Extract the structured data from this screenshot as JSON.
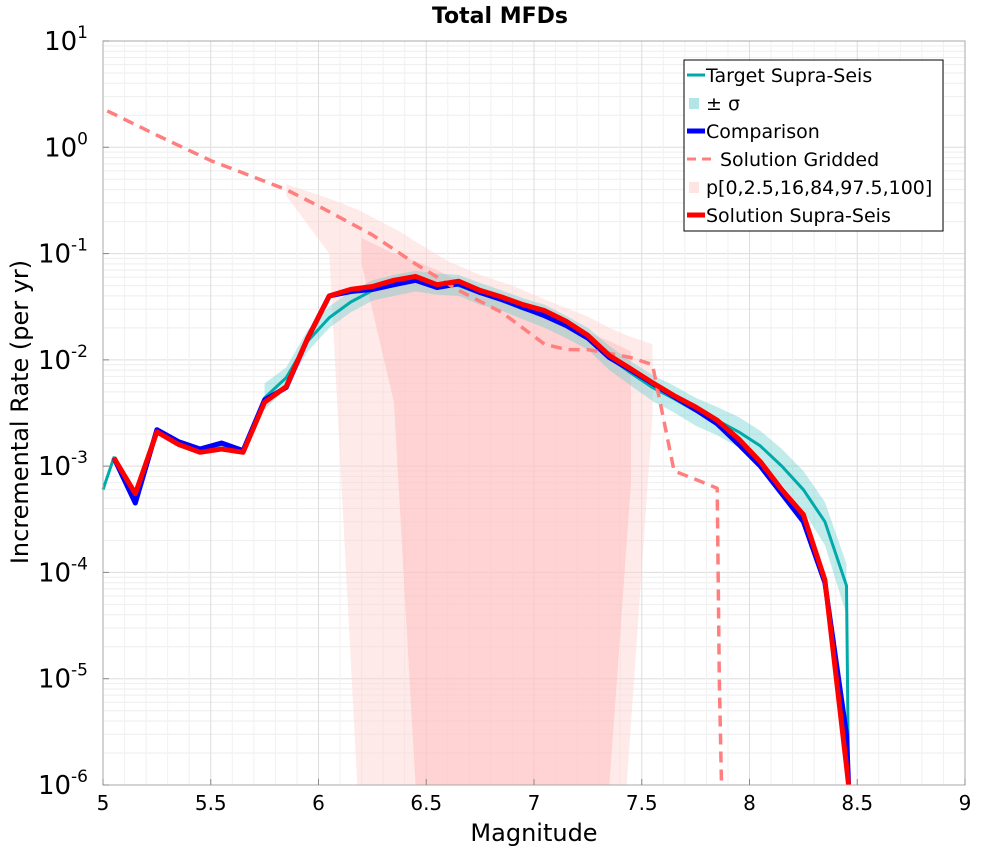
{
  "chart_data": {
    "type": "line",
    "title": "Total MFDs",
    "xlabel": "Magnitude",
    "ylabel": "Incremental Rate (per yr)",
    "xlim": [
      5,
      9
    ],
    "ylim": [
      1e-06,
      10
    ],
    "yscale": "log",
    "grid": true,
    "legend_position": "top-right",
    "x_ticks": [
      "5",
      "5.5",
      "6",
      "6.5",
      "7",
      "7.5",
      "8",
      "8.5",
      "9"
    ],
    "y_ticks": [
      {
        "base": "10",
        "exp": "-6"
      },
      {
        "base": "10",
        "exp": "-5"
      },
      {
        "base": "10",
        "exp": "-4"
      },
      {
        "base": "10",
        "exp": "-3"
      },
      {
        "base": "10",
        "exp": "-2"
      },
      {
        "base": "10",
        "exp": "-1"
      },
      {
        "base": "10",
        "exp": "0"
      },
      {
        "base": "10",
        "exp": "1"
      }
    ],
    "legend": [
      {
        "label": "Target Supra-Seis",
        "color": "#00aaaa",
        "style": "line"
      },
      {
        "label": "± σ",
        "color": "#b2e6e6",
        "style": "patch"
      },
      {
        "label": "Comparison",
        "color": "#0000ff",
        "style": "thick-line"
      },
      {
        "label": "Solution Gridded",
        "color": "#ff7f7f",
        "style": "dashed"
      },
      {
        "label": "p[0,2.5,16,84,97.5,100]",
        "color": "#ffe4e4",
        "style": "patch"
      },
      {
        "label": "Solution Supra-Seis",
        "color": "#ff0000",
        "style": "thick-line"
      }
    ],
    "series": {
      "target_supra_seis": {
        "color": "#00aaaa",
        "x": [
          5.0,
          5.05,
          5.15,
          5.25,
          5.35,
          5.45,
          5.55,
          5.65,
          5.75,
          5.85,
          5.95,
          6.05,
          6.15,
          6.25,
          6.35,
          6.45,
          6.55,
          6.65,
          6.75,
          6.85,
          6.95,
          7.05,
          7.15,
          7.25,
          7.35,
          7.45,
          7.55,
          7.65,
          7.75,
          7.85,
          7.95,
          8.05,
          8.15,
          8.25,
          8.35,
          8.45,
          8.46
        ],
        "y": [
          0.0006,
          0.0012,
          0.0005,
          0.0022,
          0.0017,
          0.0014,
          0.0016,
          0.0014,
          0.0044,
          0.0068,
          0.015,
          0.025,
          0.035,
          0.045,
          0.05,
          0.055,
          0.052,
          0.05,
          0.042,
          0.036,
          0.03,
          0.026,
          0.021,
          0.016,
          0.0105,
          0.0075,
          0.0055,
          0.0043,
          0.0033,
          0.0027,
          0.0021,
          0.00155,
          0.001,
          0.0006,
          0.0003,
          7.5e-05,
          1e-06
        ]
      },
      "target_sigma": {
        "color": "#b2e6e6",
        "x": [
          5.75,
          5.85,
          5.95,
          6.05,
          6.15,
          6.25,
          6.35,
          6.45,
          6.55,
          6.65,
          6.75,
          6.85,
          6.95,
          7.05,
          7.15,
          7.25,
          7.35,
          7.45,
          7.55,
          7.65,
          7.75,
          7.85,
          7.95,
          8.05,
          8.15,
          8.25,
          8.35,
          8.45
        ],
        "upper": [
          0.006,
          0.0085,
          0.019,
          0.032,
          0.044,
          0.056,
          0.063,
          0.069,
          0.065,
          0.063,
          0.053,
          0.045,
          0.038,
          0.033,
          0.026,
          0.02,
          0.0135,
          0.0097,
          0.0072,
          0.0057,
          0.0044,
          0.0036,
          0.0029,
          0.00215,
          0.00145,
          0.0009,
          0.00046,
          0.00012
        ],
        "lower": [
          0.0034,
          0.0054,
          0.012,
          0.02,
          0.028,
          0.036,
          0.04,
          0.044,
          0.041,
          0.04,
          0.033,
          0.029,
          0.024,
          0.02,
          0.016,
          0.0125,
          0.008,
          0.0057,
          0.0041,
          0.0032,
          0.0024,
          0.00195,
          0.0015,
          0.0011,
          0.00067,
          0.00038,
          0.00018,
          4e-05
        ]
      },
      "comparison": {
        "color": "#0000ff",
        "x": [
          5.05,
          5.15,
          5.25,
          5.35,
          5.45,
          5.55,
          5.65,
          5.75,
          5.85,
          5.95,
          6.05,
          6.15,
          6.25,
          6.35,
          6.45,
          6.55,
          6.65,
          6.75,
          6.85,
          6.95,
          7.05,
          7.15,
          7.25,
          7.35,
          7.45,
          7.55,
          7.65,
          7.75,
          7.85,
          7.95,
          8.05,
          8.15,
          8.25,
          8.35,
          8.45,
          8.46
        ],
        "y": [
          0.0012,
          0.00045,
          0.0022,
          0.0017,
          0.00145,
          0.00165,
          0.0014,
          0.0042,
          0.0055,
          0.016,
          0.04,
          0.044,
          0.046,
          0.051,
          0.056,
          0.048,
          0.052,
          0.043,
          0.037,
          0.031,
          0.026,
          0.021,
          0.016,
          0.0105,
          0.008,
          0.006,
          0.0045,
          0.0034,
          0.0025,
          0.0016,
          0.001,
          0.00055,
          0.0003,
          8e-05,
          3e-06,
          1e-06
        ]
      },
      "solution_gridded": {
        "color": "#ff7f7f",
        "x": [
          5.02,
          5.25,
          5.5,
          5.75,
          5.85,
          6.0,
          6.25,
          6.45,
          6.65,
          6.85,
          7.05,
          7.15,
          7.25,
          7.35,
          7.45,
          7.55,
          7.65,
          7.75,
          7.85,
          7.86,
          7.87
        ],
        "y": [
          2.2,
          1.3,
          0.75,
          0.48,
          0.4,
          0.28,
          0.15,
          0.08,
          0.045,
          0.028,
          0.014,
          0.0125,
          0.0125,
          0.0115,
          0.0105,
          0.009,
          0.0009,
          0.00075,
          0.00062,
          1e-05,
          1e-06
        ]
      },
      "solution_percentiles": {
        "color": "#ffe4e4",
        "x": [
          5.85,
          6.05,
          6.18,
          6.25,
          6.38,
          6.45,
          6.6,
          6.75,
          6.9,
          7.05,
          7.2,
          7.26,
          7.35,
          7.43,
          7.55
        ],
        "outer_upper": [
          0.45,
          0.33,
          0.26,
          0.22,
          0.16,
          0.13,
          0.085,
          0.063,
          0.05,
          0.037,
          0.028,
          0.025,
          0.02,
          0.017,
          0.014
        ],
        "outer_lower": [
          0.35,
          0.1,
          1e-06,
          1e-06,
          1e-06,
          1e-06,
          1e-06,
          1e-06,
          1e-06,
          1e-06,
          1e-06,
          1e-06,
          1e-06,
          1e-06,
          0.003
        ],
        "inner_x": [
          6.2,
          6.35,
          6.45,
          6.55,
          6.65,
          6.75,
          6.85,
          6.95,
          7.05,
          7.15,
          7.25,
          7.35,
          7.45
        ],
        "inner_upper": [
          0.14,
          0.1,
          0.085,
          0.07,
          0.055,
          0.045,
          0.037,
          0.031,
          0.026,
          0.022,
          0.018,
          0.015,
          0.012
        ],
        "inner_lower": [
          0.08,
          0.004,
          1e-06,
          1e-06,
          1e-06,
          1e-06,
          1e-06,
          1e-06,
          1e-06,
          1e-06,
          1e-06,
          1e-06,
          0.0007
        ]
      },
      "solution_supra_seis": {
        "color": "#ff0000",
        "x": [
          5.05,
          5.15,
          5.25,
          5.35,
          5.45,
          5.55,
          5.65,
          5.75,
          5.85,
          5.95,
          6.05,
          6.15,
          6.25,
          6.35,
          6.45,
          6.55,
          6.65,
          6.75,
          6.85,
          6.95,
          7.05,
          7.15,
          7.25,
          7.35,
          7.45,
          7.55,
          7.65,
          7.75,
          7.85,
          7.95,
          8.05,
          8.15,
          8.25,
          8.35,
          8.45,
          8.46
        ],
        "y": [
          0.0012,
          0.00055,
          0.0021,
          0.0016,
          0.00135,
          0.00145,
          0.00135,
          0.004,
          0.0056,
          0.016,
          0.04,
          0.046,
          0.049,
          0.056,
          0.061,
          0.051,
          0.055,
          0.045,
          0.039,
          0.033,
          0.029,
          0.023,
          0.017,
          0.011,
          0.0082,
          0.0061,
          0.0046,
          0.0036,
          0.0027,
          0.0018,
          0.0011,
          0.0006,
          0.00035,
          8.5e-05,
          1.5e-06,
          1e-06
        ]
      }
    }
  }
}
